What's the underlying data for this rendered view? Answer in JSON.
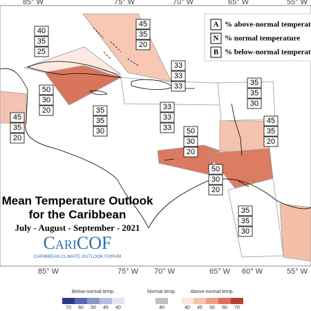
{
  "longitude_labels_top": [
    "85° W",
    "75° W",
    "70° W",
    "65° W",
    "55° W"
  ],
  "longitude_labels_bottom": [
    "85° W",
    "75° W",
    "70° W",
    "65° W",
    "60° W",
    "55° W"
  ],
  "key": [
    {
      "letter": "A",
      "text": "% above-normal temperature"
    },
    {
      "letter": "N",
      "text": "% normal temperature"
    },
    {
      "letter": "B",
      "text": "% below-normal temperature"
    }
  ],
  "regions": [
    {
      "values": [
        45,
        35,
        20
      ]
    },
    {
      "values": [
        40,
        35,
        25
      ]
    },
    {
      "values": [
        50,
        30,
        20
      ]
    },
    {
      "values": [
        45,
        35,
        20
      ]
    },
    {
      "values": [
        35,
        35,
        30
      ]
    },
    {
      "values": [
        33,
        33,
        33
      ]
    },
    {
      "values": [
        33,
        33,
        33
      ]
    },
    {
      "values": [
        35,
        35,
        30
      ]
    },
    {
      "values": [
        45,
        35,
        20
      ]
    },
    {
      "values": [
        50,
        30,
        20
      ]
    },
    {
      "values": [
        50,
        30,
        20
      ]
    },
    {
      "values": [
        35,
        35,
        30
      ]
    }
  ],
  "title": {
    "line1": "Mean Temperature Outlook",
    "line2": "for the Caribbean",
    "season": "July - August - September - 2021",
    "logo": "CariCOF",
    "logo_subtitle": "CARIBBEAN CLIMATE OUTLOOK FORUM"
  },
  "legend": {
    "below": {
      "label": "Below-normal temp.",
      "ticks": [
        70,
        60,
        50,
        45,
        40
      ]
    },
    "normal": {
      "label": "Normal temp.",
      "ticks": [
        40
      ]
    },
    "above": {
      "label": "Above-normal temp.",
      "ticks": [
        40,
        45,
        50,
        60,
        70
      ]
    }
  }
}
